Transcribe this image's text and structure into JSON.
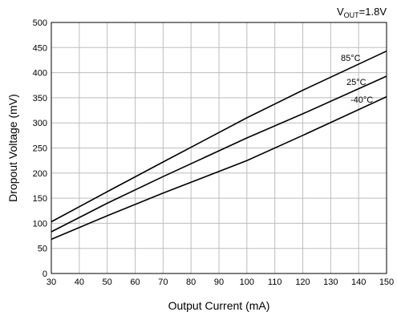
{
  "chart_data": {
    "type": "line",
    "title": "",
    "xlabel": "Output Current (mA)",
    "ylabel": "Dropout Voltage (mV)",
    "xlim": [
      30,
      150
    ],
    "ylim": [
      0,
      500
    ],
    "x_ticks": [
      30,
      40,
      50,
      60,
      70,
      80,
      90,
      100,
      110,
      120,
      130,
      140,
      150
    ],
    "y_ticks": [
      0,
      50,
      100,
      150,
      200,
      250,
      300,
      350,
      400,
      450,
      500
    ],
    "grid": true,
    "condition": {
      "prefix": "V",
      "subscript": "OUT",
      "suffix": "=1.8V"
    },
    "series": [
      {
        "name": "85°C",
        "x": [
          30,
          50,
          70,
          100,
          120,
          150
        ],
        "y": [
          103,
          163,
          222,
          310,
          365,
          443
        ]
      },
      {
        "name": "25°C",
        "x": [
          30,
          50,
          70,
          100,
          120,
          150
        ],
        "y": [
          83,
          140,
          193,
          270,
          318,
          393
        ]
      },
      {
        "name": "-40°C",
        "x": [
          30,
          50,
          70,
          100,
          120,
          150
        ],
        "y": [
          68,
          115,
          160,
          225,
          275,
          352
        ]
      }
    ]
  }
}
